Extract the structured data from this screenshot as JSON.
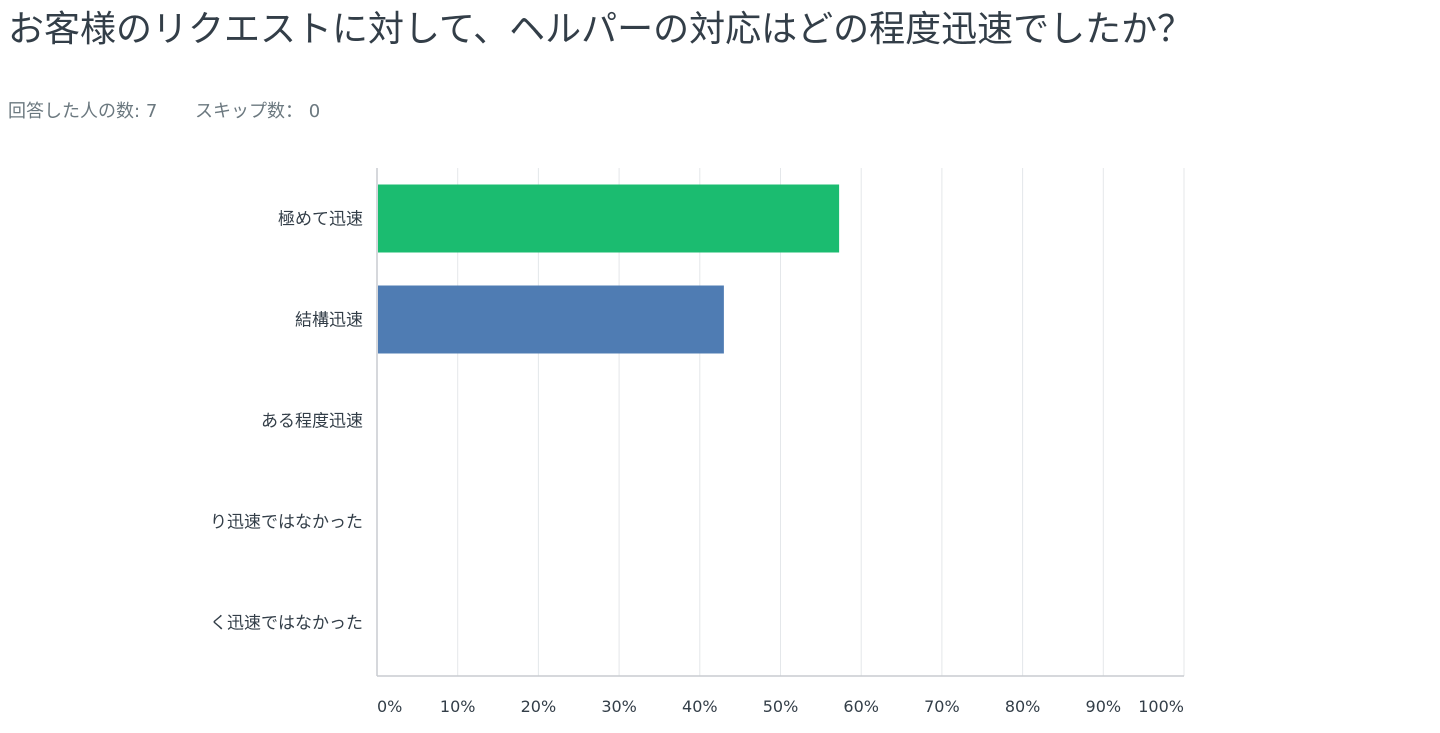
{
  "question": {
    "title": "お客様のリクエストに対して、ヘルパーの対応はどの程度迅速でしたか？"
  },
  "stats": {
    "answered_label": "回答した人の数:",
    "answered_count": "7",
    "skipped_label": "スキップ数：",
    "skipped_count": "0"
  },
  "colors": {
    "green": "#1bbc70",
    "blue": "#4f7cb3",
    "grid": "#e4e7ea",
    "axis": "#c8ccd0"
  },
  "chart_data": {
    "type": "bar",
    "orientation": "horizontal",
    "categories": [
      "極めて迅速",
      "結構迅速",
      "ある程度迅速",
      "り迅速ではなかった",
      "く迅速ではなかった"
    ],
    "values": [
      57.14,
      42.86,
      0,
      0,
      0
    ],
    "bar_colors": [
      "#1bbc70",
      "#4f7cb3",
      "#1bbc70",
      "#4f7cb3",
      "#1bbc70"
    ],
    "xlim": [
      0,
      100
    ],
    "x_ticks": [
      "0%",
      "10%",
      "20%",
      "30%",
      "40%",
      "50%",
      "60%",
      "70%",
      "80%",
      "90%",
      "100%"
    ],
    "grid": true,
    "legend": false
  }
}
